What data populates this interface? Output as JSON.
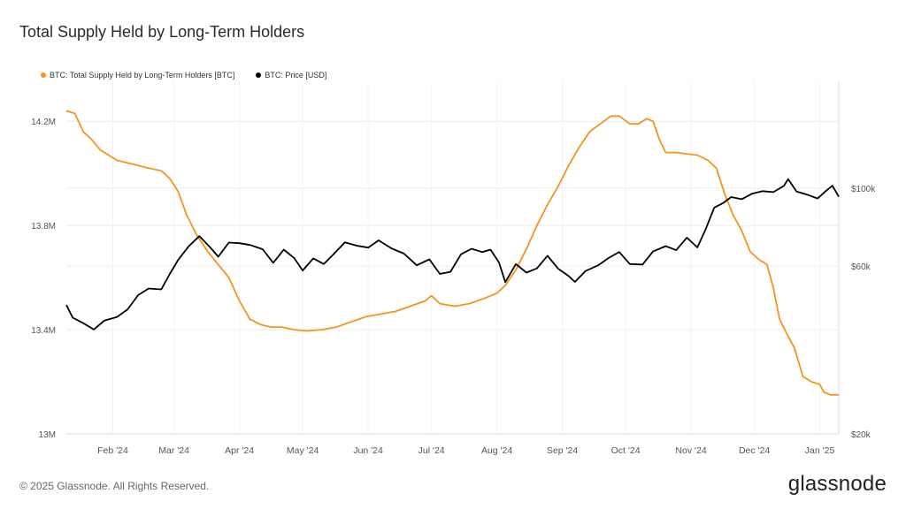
{
  "title": "Total Supply Held by Long-Term Holders",
  "legend": [
    {
      "label": "BTC: Total Supply Held by Long-Term Holders [BTC]",
      "color": "#f7931a"
    },
    {
      "label": "BTC: Price [USD]",
      "color": "#000000"
    }
  ],
  "footer": "© 2025 Glassnode. All Rights Reserved.",
  "brand": "glassnode",
  "chart_data": {
    "type": "line",
    "x_ticks": [
      "Feb '24",
      "Mar '24",
      "Apr '24",
      "May '24",
      "Jun '24",
      "Jul '24",
      "Aug '24",
      "Sep '24",
      "Oct '24",
      "Nov '24",
      "Dec '24",
      "Jan '25"
    ],
    "x_tick_dates": [
      "2024-02-01",
      "2024-03-01",
      "2024-04-01",
      "2024-05-01",
      "2024-06-01",
      "2024-07-01",
      "2024-08-01",
      "2024-09-01",
      "2024-10-01",
      "2024-11-01",
      "2024-12-01",
      "2025-01-01"
    ],
    "x_range": [
      "2024-01-10",
      "2025-01-10"
    ],
    "y_left": {
      "ticks": [
        13000000,
        13400000,
        13800000,
        14200000
      ],
      "tick_labels": [
        "13M",
        "13.4M",
        "13.8M",
        "14.2M"
      ],
      "range": [
        13000000,
        14350000
      ]
    },
    "y_right": {
      "scale": "log",
      "ticks": [
        20000,
        60000,
        100000
      ],
      "tick_labels": [
        "$20k",
        "$60k",
        "$100k"
      ],
      "range": [
        20000,
        200000
      ]
    },
    "grid": true,
    "legend_position": "top-left",
    "series": [
      {
        "name": "BTC: Total Supply Held by Long-Term Holders [BTC]",
        "axis": "left",
        "color": "#f7931a",
        "points": [
          [
            "2024-01-10",
            14240000
          ],
          [
            "2024-01-14",
            14230000
          ],
          [
            "2024-01-18",
            14160000
          ],
          [
            "2024-01-22",
            14130000
          ],
          [
            "2024-01-26",
            14090000
          ],
          [
            "2024-01-30",
            14070000
          ],
          [
            "2024-02-03",
            14050000
          ],
          [
            "2024-02-08",
            14040000
          ],
          [
            "2024-02-13",
            14030000
          ],
          [
            "2024-02-18",
            14020000
          ],
          [
            "2024-02-24",
            14010000
          ],
          [
            "2024-02-28",
            13980000
          ],
          [
            "2024-03-03",
            13930000
          ],
          [
            "2024-03-07",
            13840000
          ],
          [
            "2024-03-12",
            13760000
          ],
          [
            "2024-03-17",
            13700000
          ],
          [
            "2024-03-22",
            13650000
          ],
          [
            "2024-03-27",
            13600000
          ],
          [
            "2024-04-01",
            13510000
          ],
          [
            "2024-04-06",
            13440000
          ],
          [
            "2024-04-11",
            13420000
          ],
          [
            "2024-04-16",
            13410000
          ],
          [
            "2024-04-21",
            13410000
          ],
          [
            "2024-04-27",
            13400000
          ],
          [
            "2024-05-03",
            13395000
          ],
          [
            "2024-05-10",
            13400000
          ],
          [
            "2024-05-17",
            13410000
          ],
          [
            "2024-05-24",
            13430000
          ],
          [
            "2024-05-31",
            13450000
          ],
          [
            "2024-06-07",
            13460000
          ],
          [
            "2024-06-14",
            13470000
          ],
          [
            "2024-06-21",
            13490000
          ],
          [
            "2024-06-28",
            13510000
          ],
          [
            "2024-07-01",
            13530000
          ],
          [
            "2024-07-05",
            13500000
          ],
          [
            "2024-07-12",
            13490000
          ],
          [
            "2024-07-19",
            13500000
          ],
          [
            "2024-07-26",
            13520000
          ],
          [
            "2024-08-01",
            13540000
          ],
          [
            "2024-08-05",
            13570000
          ],
          [
            "2024-08-10",
            13630000
          ],
          [
            "2024-08-15",
            13710000
          ],
          [
            "2024-08-20",
            13800000
          ],
          [
            "2024-08-25",
            13880000
          ],
          [
            "2024-08-30",
            13950000
          ],
          [
            "2024-09-04",
            14030000
          ],
          [
            "2024-09-09",
            14100000
          ],
          [
            "2024-09-14",
            14160000
          ],
          [
            "2024-09-19",
            14190000
          ],
          [
            "2024-09-24",
            14220000
          ],
          [
            "2024-09-28",
            14220000
          ],
          [
            "2024-10-03",
            14190000
          ],
          [
            "2024-10-07",
            14190000
          ],
          [
            "2024-10-11",
            14210000
          ],
          [
            "2024-10-14",
            14200000
          ],
          [
            "2024-10-17",
            14130000
          ],
          [
            "2024-10-20",
            14080000
          ],
          [
            "2024-10-25",
            14080000
          ],
          [
            "2024-10-30",
            14075000
          ],
          [
            "2024-11-04",
            14070000
          ],
          [
            "2024-11-09",
            14050000
          ],
          [
            "2024-11-13",
            14020000
          ],
          [
            "2024-11-17",
            13920000
          ],
          [
            "2024-11-21",
            13840000
          ],
          [
            "2024-11-25",
            13780000
          ],
          [
            "2024-11-29",
            13700000
          ],
          [
            "2024-12-03",
            13670000
          ],
          [
            "2024-12-07",
            13650000
          ],
          [
            "2024-12-10",
            13560000
          ],
          [
            "2024-12-13",
            13440000
          ],
          [
            "2024-12-16",
            13390000
          ],
          [
            "2024-12-20",
            13330000
          ],
          [
            "2024-12-24",
            13220000
          ],
          [
            "2024-12-28",
            13200000
          ],
          [
            "2025-01-01",
            13190000
          ],
          [
            "2025-01-03",
            13160000
          ],
          [
            "2025-01-06",
            13150000
          ],
          [
            "2025-01-10",
            13150000
          ]
        ]
      },
      {
        "name": "BTC: Price [USD]",
        "axis": "right",
        "color": "#000000",
        "points": [
          [
            "2024-01-10",
            46500
          ],
          [
            "2024-01-13",
            42800
          ],
          [
            "2024-01-18",
            41300
          ],
          [
            "2024-01-23",
            39600
          ],
          [
            "2024-01-28",
            42000
          ],
          [
            "2024-02-03",
            43000
          ],
          [
            "2024-02-08",
            45200
          ],
          [
            "2024-02-13",
            49600
          ],
          [
            "2024-02-18",
            51800
          ],
          [
            "2024-02-24",
            51500
          ],
          [
            "2024-02-28",
            57000
          ],
          [
            "2024-03-03",
            62500
          ],
          [
            "2024-03-08",
            68300
          ],
          [
            "2024-03-13",
            73000
          ],
          [
            "2024-03-18",
            68000
          ],
          [
            "2024-03-22",
            63800
          ],
          [
            "2024-03-27",
            70000
          ],
          [
            "2024-04-01",
            69700
          ],
          [
            "2024-04-06",
            68900
          ],
          [
            "2024-04-12",
            67000
          ],
          [
            "2024-04-17",
            61300
          ],
          [
            "2024-04-22",
            66800
          ],
          [
            "2024-04-27",
            63200
          ],
          [
            "2024-05-01",
            58300
          ],
          [
            "2024-05-06",
            63100
          ],
          [
            "2024-05-11",
            60800
          ],
          [
            "2024-05-16",
            65200
          ],
          [
            "2024-05-21",
            70100
          ],
          [
            "2024-05-27",
            68500
          ],
          [
            "2024-06-01",
            67700
          ],
          [
            "2024-06-06",
            71000
          ],
          [
            "2024-06-12",
            67400
          ],
          [
            "2024-06-18",
            65100
          ],
          [
            "2024-06-24",
            60300
          ],
          [
            "2024-06-30",
            62700
          ],
          [
            "2024-07-05",
            57000
          ],
          [
            "2024-07-10",
            57800
          ],
          [
            "2024-07-15",
            64800
          ],
          [
            "2024-07-20",
            67200
          ],
          [
            "2024-07-25",
            65800
          ],
          [
            "2024-07-29",
            66800
          ],
          [
            "2024-08-02",
            61400
          ],
          [
            "2024-08-05",
            54000
          ],
          [
            "2024-08-10",
            60800
          ],
          [
            "2024-08-15",
            57500
          ],
          [
            "2024-08-20",
            59100
          ],
          [
            "2024-08-25",
            64200
          ],
          [
            "2024-08-30",
            59000
          ],
          [
            "2024-09-04",
            56200
          ],
          [
            "2024-09-07",
            54100
          ],
          [
            "2024-09-12",
            58100
          ],
          [
            "2024-09-18",
            60300
          ],
          [
            "2024-09-23",
            63300
          ],
          [
            "2024-09-28",
            65800
          ],
          [
            "2024-10-03",
            60800
          ],
          [
            "2024-10-09",
            60600
          ],
          [
            "2024-10-14",
            66000
          ],
          [
            "2024-10-20",
            68400
          ],
          [
            "2024-10-25",
            66600
          ],
          [
            "2024-10-30",
            72300
          ],
          [
            "2024-11-04",
            67800
          ],
          [
            "2024-11-08",
            76500
          ],
          [
            "2024-11-12",
            88000
          ],
          [
            "2024-11-16",
            90500
          ],
          [
            "2024-11-20",
            94300
          ],
          [
            "2024-11-25",
            93000
          ],
          [
            "2024-11-30",
            96400
          ],
          [
            "2024-12-05",
            98000
          ],
          [
            "2024-12-10",
            97400
          ],
          [
            "2024-12-15",
            101400
          ],
          [
            "2024-12-17",
            106000
          ],
          [
            "2024-12-21",
            97800
          ],
          [
            "2024-12-26",
            95800
          ],
          [
            "2024-12-31",
            93400
          ],
          [
            "2025-01-04",
            98200
          ],
          [
            "2025-01-07",
            101600
          ],
          [
            "2025-01-10",
            94500
          ]
        ]
      }
    ]
  }
}
